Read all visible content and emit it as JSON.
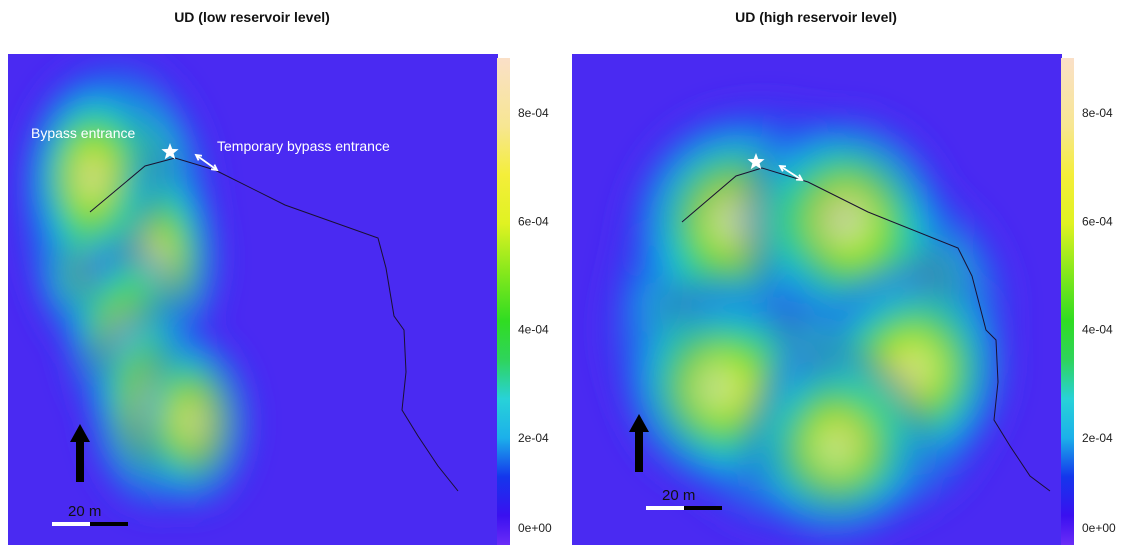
{
  "chart_data": [
    {
      "type": "heatmap",
      "title": "UD (low reservoir level)",
      "colorbar": {
        "range": [
          0,
          0.0009
        ],
        "ticks": [
          {
            "value": 0,
            "label": "0e+00"
          },
          {
            "value": 0.0002,
            "label": "2e-04"
          },
          {
            "value": 0.0004,
            "label": "4e-04"
          },
          {
            "value": 0.0006,
            "label": "6e-04"
          },
          {
            "value": 0.0008,
            "label": "8e-04"
          }
        ],
        "position": "right"
      },
      "hotspots": [
        {
          "x": 0.22,
          "y": 0.31,
          "ud": 0.00082
        },
        {
          "x": 0.19,
          "y": 0.42,
          "ud": 0.0004
        },
        {
          "x": 0.3,
          "y": 0.42,
          "ud": 0.0004
        },
        {
          "x": 0.17,
          "y": 0.25,
          "ud": 0.0004
        },
        {
          "x": 0.24,
          "y": 0.58,
          "ud": 0.00032
        },
        {
          "x": 0.3,
          "y": 0.72,
          "ud": 0.00042
        },
        {
          "x": 0.38,
          "y": 0.75,
          "ud": 0.00028
        }
      ],
      "annotations": {
        "star_label": "Bypass entrance",
        "arrow_label": "Temporary bypass entrance",
        "scale_label": "20 m"
      }
    },
    {
      "type": "heatmap",
      "title": "UD (high reservoir level)",
      "colorbar": {
        "range": [
          0,
          0.0009
        ],
        "ticks": [
          {
            "value": 0,
            "label": "0e+00"
          },
          {
            "value": 0.0002,
            "label": "2e-04"
          },
          {
            "value": 0.0004,
            "label": "4e-04"
          },
          {
            "value": 0.0006,
            "label": "6e-04"
          },
          {
            "value": 0.0008,
            "label": "8e-04"
          }
        ],
        "position": "right"
      },
      "hotspots": [
        {
          "x": 0.4,
          "y": 0.42,
          "ud": 0.00075
        },
        {
          "x": 0.5,
          "y": 0.44,
          "ud": 0.00068
        },
        {
          "x": 0.36,
          "y": 0.56,
          "ud": 0.00072
        },
        {
          "x": 0.5,
          "y": 0.58,
          "ud": 0.0006
        },
        {
          "x": 0.64,
          "y": 0.52,
          "ud": 0.00058
        },
        {
          "x": 0.44,
          "y": 0.7,
          "ud": 0.00058
        },
        {
          "x": 0.62,
          "y": 0.7,
          "ud": 0.00052
        },
        {
          "x": 0.33,
          "y": 0.34,
          "ud": 0.0004
        },
        {
          "x": 0.56,
          "y": 0.34,
          "ud": 0.0004
        },
        {
          "x": 0.3,
          "y": 0.68,
          "ud": 0.00035
        },
        {
          "x": 0.7,
          "y": 0.64,
          "ud": 0.00035
        },
        {
          "x": 0.54,
          "y": 0.8,
          "ud": 0.00032
        }
      ],
      "annotations": {
        "star_label": "",
        "arrow_label": "",
        "scale_label": "20 m"
      }
    }
  ]
}
